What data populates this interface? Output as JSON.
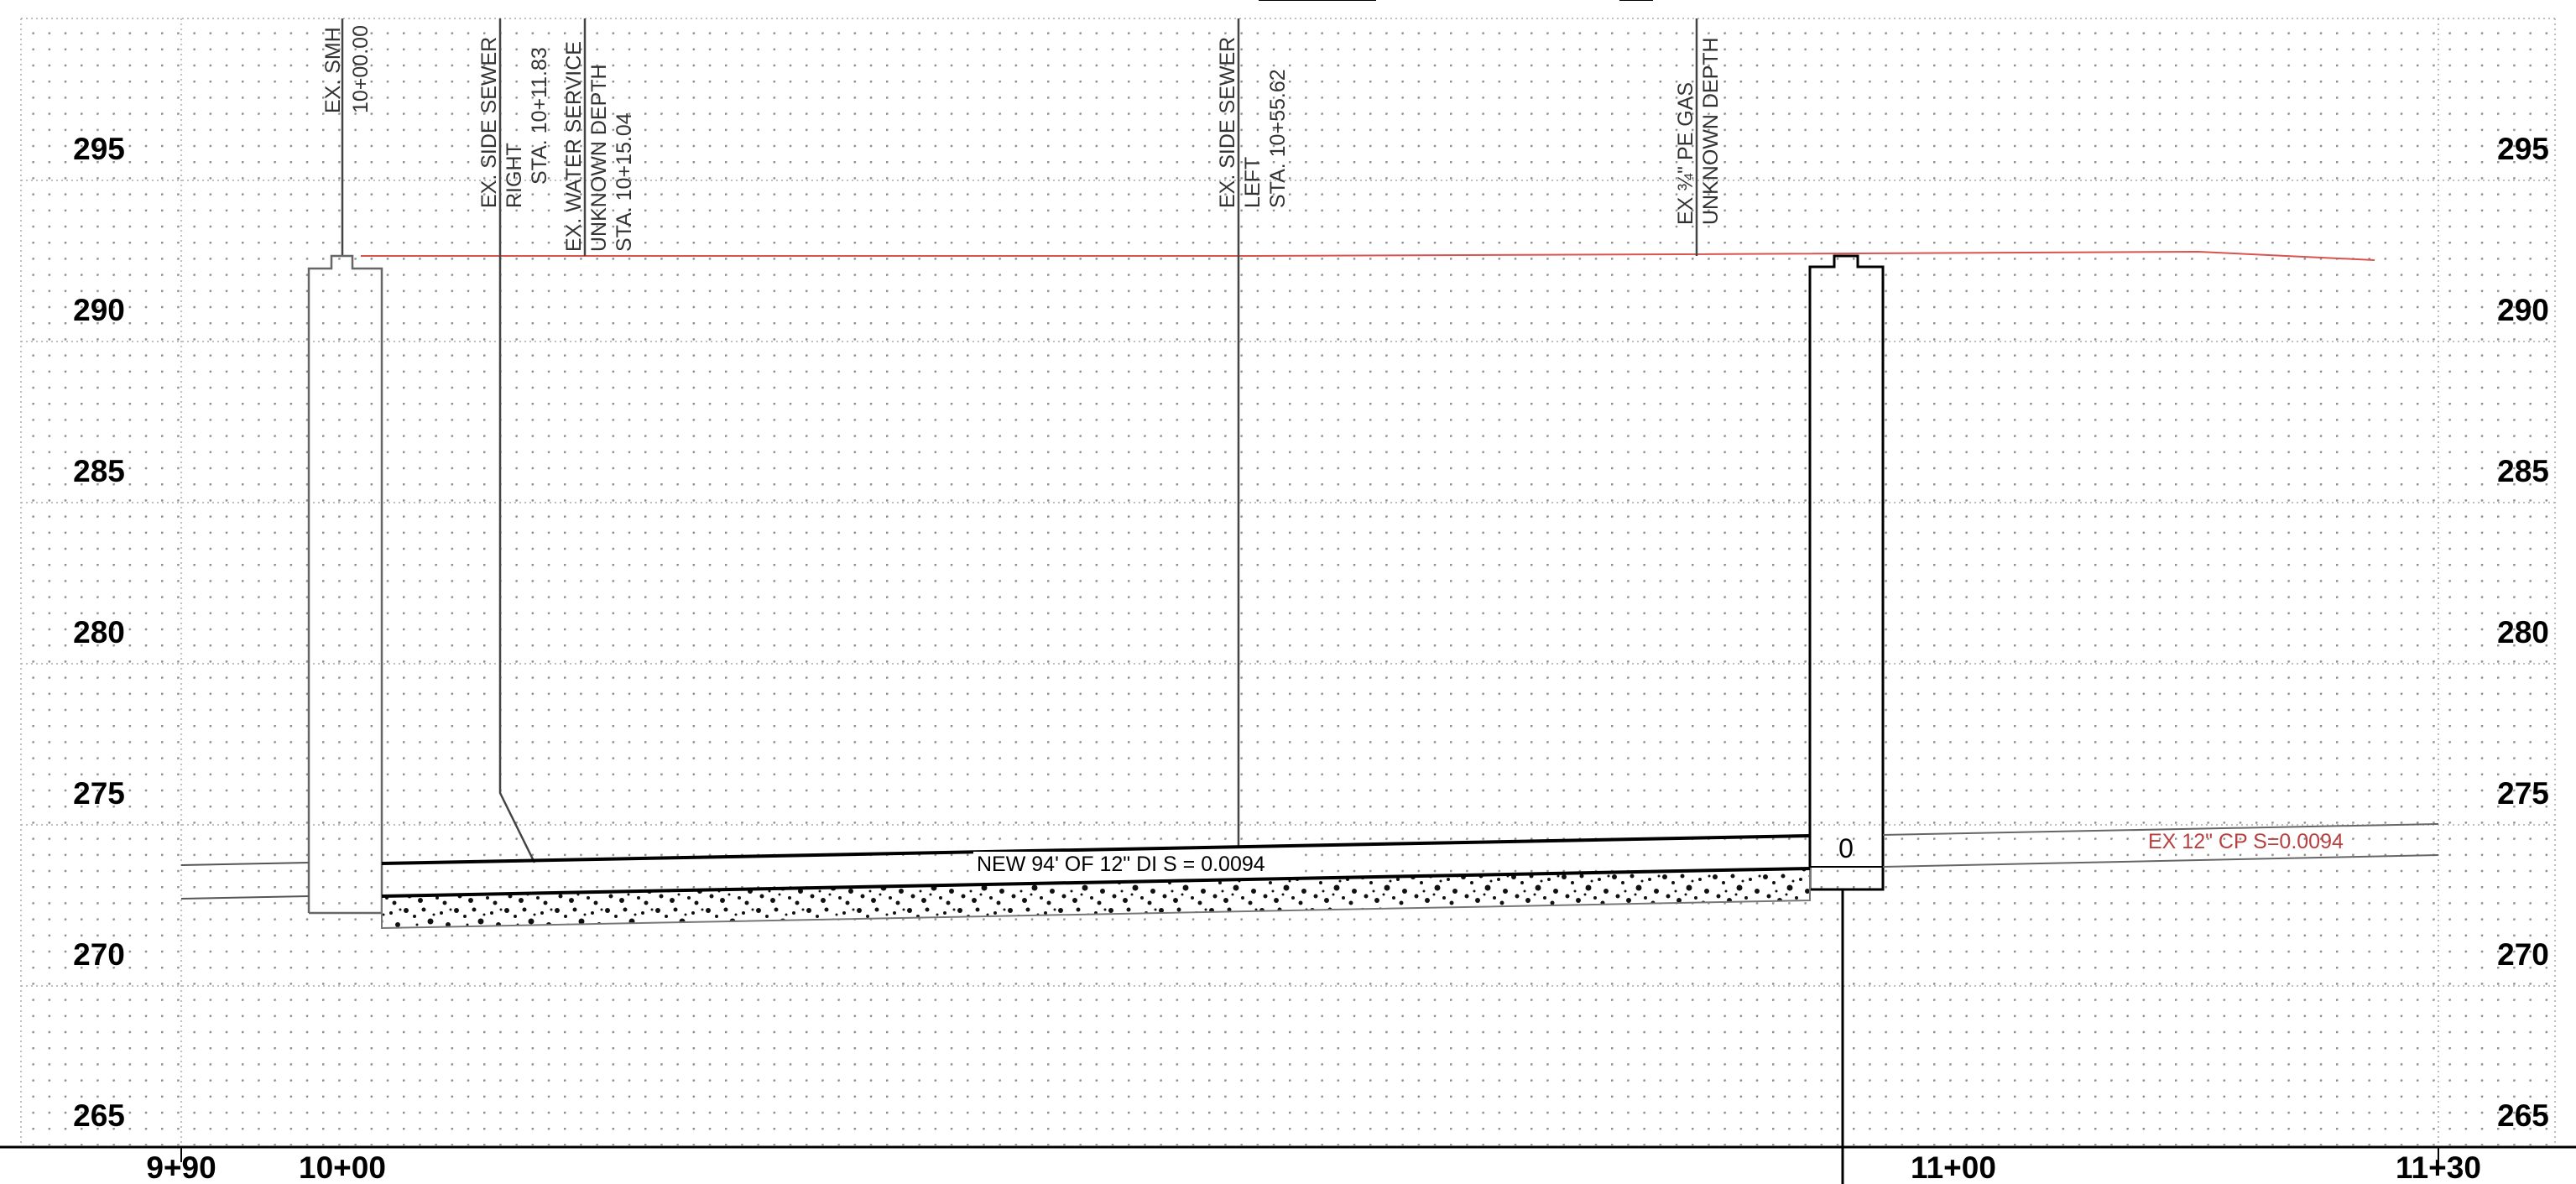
{
  "elevations": [
    "295",
    "290",
    "285",
    "280",
    "275",
    "270",
    "265"
  ],
  "stations": [
    "9+90",
    "10+00",
    "11+00",
    "11+30"
  ],
  "utilities": [
    {
      "lines": [
        "EX. SMH",
        "10+00.00"
      ]
    },
    {
      "lines": [
        "EX. SIDE SEWER",
        "RIGHT",
        "STA. 10+11.83"
      ]
    },
    {
      "lines": [
        "EX. WATER SERVICE",
        "UNKNOWN DEPTH",
        "STA. 10+15.04"
      ]
    },
    {
      "lines": [
        "EX. SIDE SEWER",
        "LEFT",
        "STA. 10+55.62"
      ]
    },
    {
      "lines": [
        "EX ¾\" PE GAS",
        "UNKNOWN DEPTH"
      ]
    }
  ],
  "pipe_label": "NEW 94' OF 12\" DI S = 0.0094",
  "existing_pipe_label": "EX 12\" CP S=0.0094",
  "manhole_number": "0",
  "colors": {
    "ground_line": "#d9534f",
    "existing_pipe": "#b84040",
    "grid": "#9a9a9a",
    "line": "#000000"
  }
}
